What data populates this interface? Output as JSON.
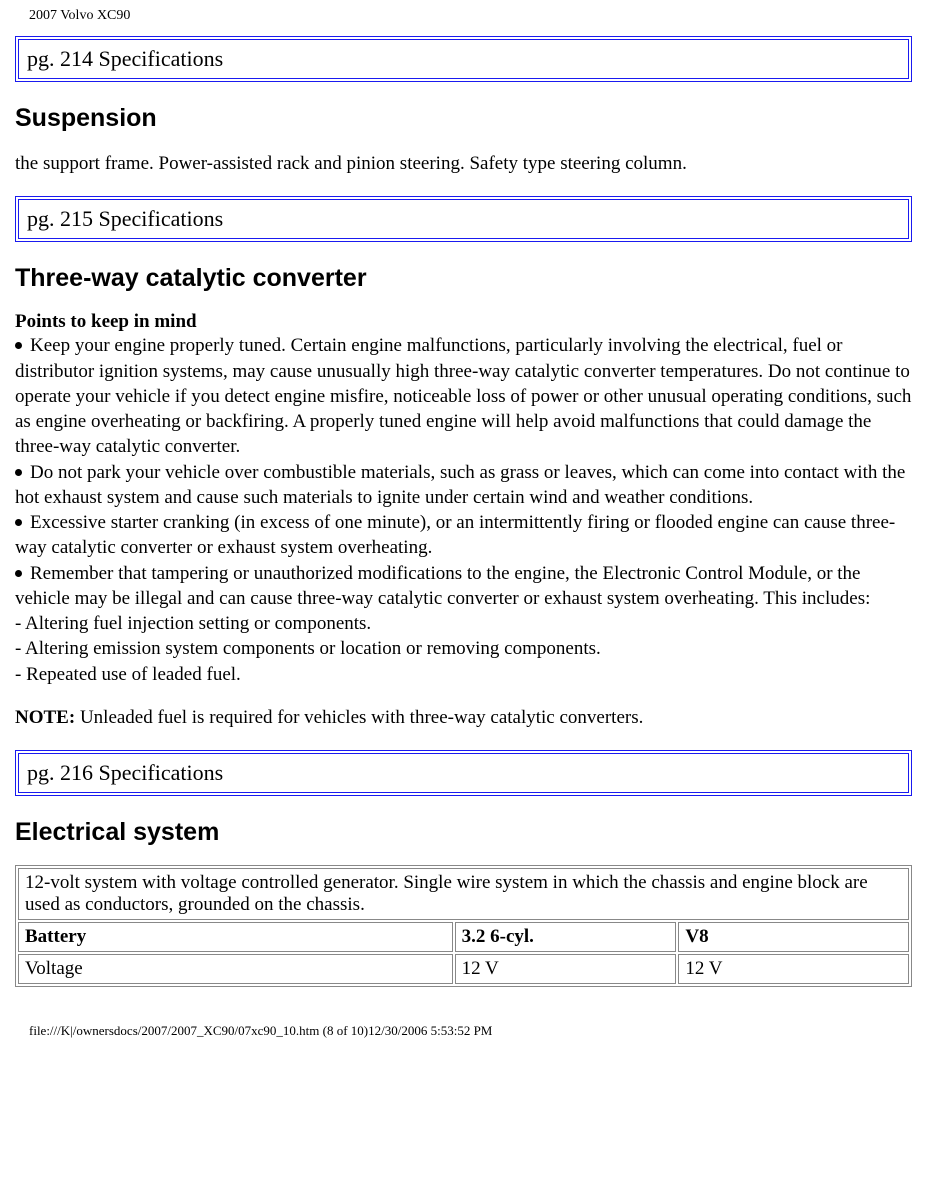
{
  "header": "2007 Volvo XC90",
  "page214": {
    "label": "pg. 214 Specifications"
  },
  "suspension": {
    "title": "Suspension",
    "body": "the support frame. Power-assisted rack and pinion steering. Safety type steering column."
  },
  "page215": {
    "label": "pg. 215 Specifications"
  },
  "catalytic": {
    "title": "Three-way catalytic converter",
    "subhead": "Points to keep in mind",
    "bullet1": "Keep your engine properly tuned. Certain engine malfunctions, particularly involving the electrical, fuel or distributor ignition systems, may cause unusually high three-way catalytic converter temperatures. Do not continue to operate your vehicle if you detect engine misfire, noticeable loss of power or other unusual operating conditions, such as engine overheating or backfiring. A properly tuned engine will help avoid malfunctions that could damage the three-way catalytic converter.",
    "bullet2": "Do not park your vehicle over combustible materials, such as grass or leaves, which can come into contact with the hot exhaust system and cause such materials to ignite under certain wind and weather conditions.",
    "bullet3": "Excessive starter cranking (in excess of one minute), or an intermittently firing or flooded engine can cause three-way catalytic converter or exhaust system overheating.",
    "bullet4": "Remember that tampering or unauthorized modifications to the engine, the Electronic Control Module, or the vehicle may be illegal and can cause three-way catalytic converter or exhaust system overheating. This includes:",
    "dash1": "- Altering fuel injection setting or components.",
    "dash2": "- Altering emission system components or location or removing components.",
    "dash3": "- Repeated use of leaded fuel.",
    "note_label": "NOTE:",
    "note_text": " Unleaded fuel is required for vehicles with three-way catalytic converters."
  },
  "page216": {
    "label": "pg. 216 Specifications"
  },
  "electrical": {
    "title": "Electrical system",
    "intro": "12-volt system with voltage controlled generator. Single wire system in which the chassis and engine block are used as conductors, grounded on the chassis.",
    "col1": "Battery",
    "col2": "3.2 6-cyl.",
    "col3": "V8",
    "row1_label": "Voltage",
    "row1_v1": "12 V",
    "row1_v2": "12 V",
    "col_widths": {
      "c1": "49%",
      "c2": "25%",
      "c3": "26%"
    }
  },
  "footer": "file:///K|/ownersdocs/2007/2007_XC90/07xc90_10.htm (8 of 10)12/30/2006 5:53:52 PM",
  "colors": {
    "box_border": "#1a1af0"
  }
}
